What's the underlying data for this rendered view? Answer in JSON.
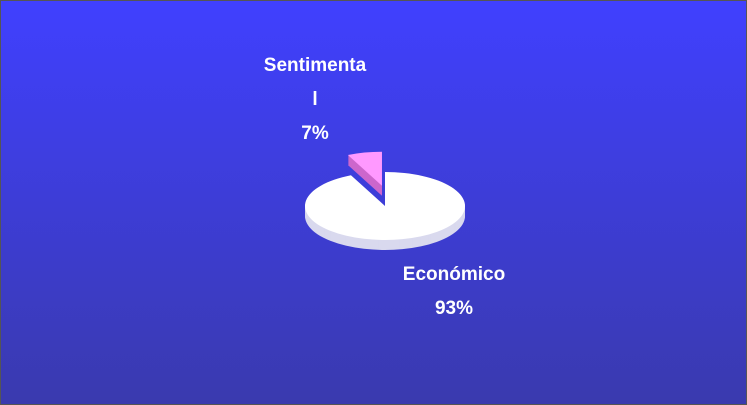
{
  "chart_data": {
    "type": "pie",
    "categories": [
      "Económico",
      "Sentimental"
    ],
    "values": [
      93,
      7
    ],
    "value_labels": [
      "93%",
      "7%"
    ],
    "colors": [
      "#ffffff",
      "#ff99ff"
    ],
    "exploded": [
      false,
      true
    ]
  }
}
